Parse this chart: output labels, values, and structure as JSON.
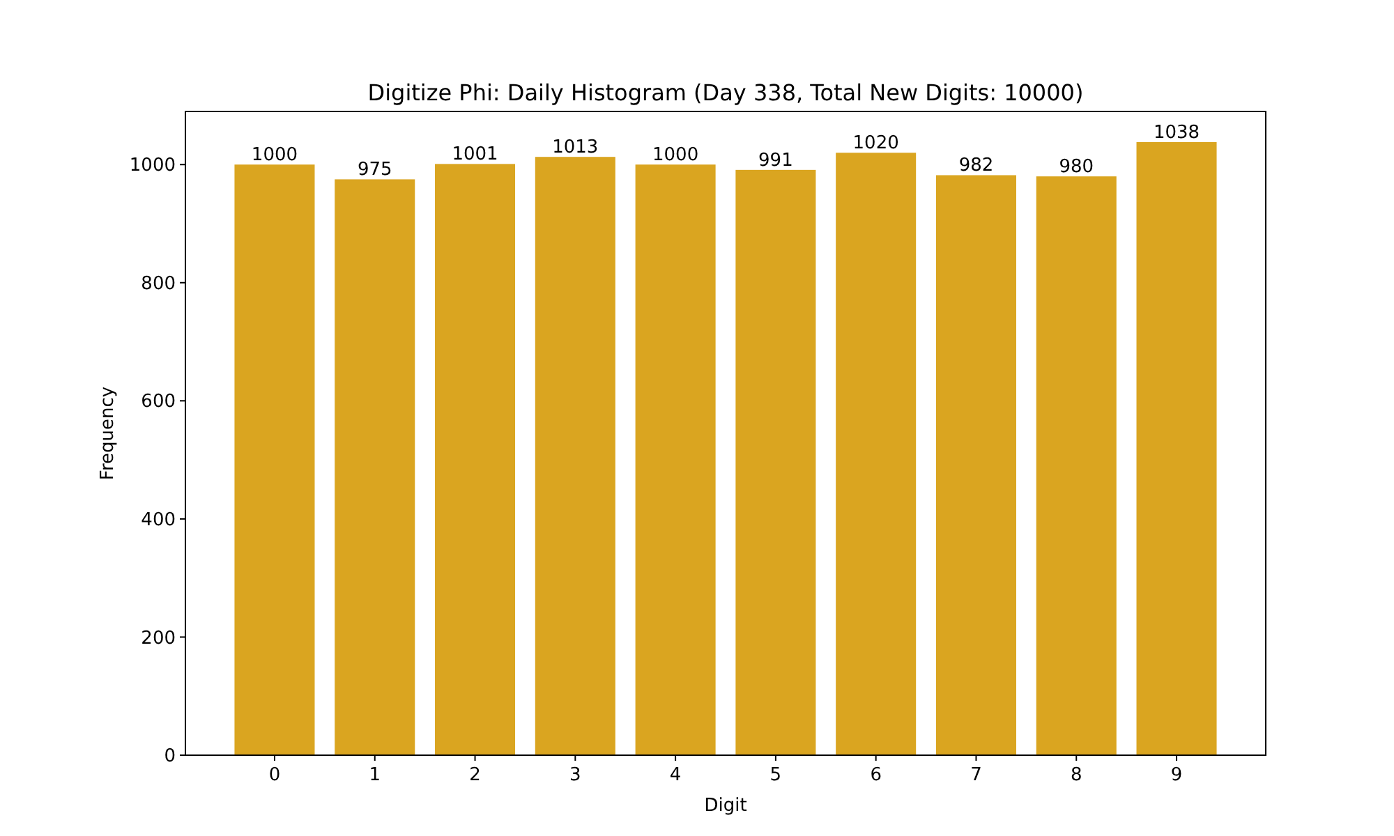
{
  "chart_data": {
    "type": "bar",
    "title": "Digitize Phi: Daily Histogram (Day 338, Total New Digits: 10000)",
    "xlabel": "Digit",
    "ylabel": "Frequency",
    "categories": [
      "0",
      "1",
      "2",
      "3",
      "4",
      "5",
      "6",
      "7",
      "8",
      "9"
    ],
    "values": [
      1000,
      975,
      1001,
      1013,
      1000,
      991,
      1020,
      982,
      980,
      1038
    ],
    "color": "#daa520",
    "ylim": [
      0,
      1089.9
    ],
    "yticks": [
      0,
      200,
      400,
      600,
      800,
      1000
    ],
    "data_labels": true
  }
}
